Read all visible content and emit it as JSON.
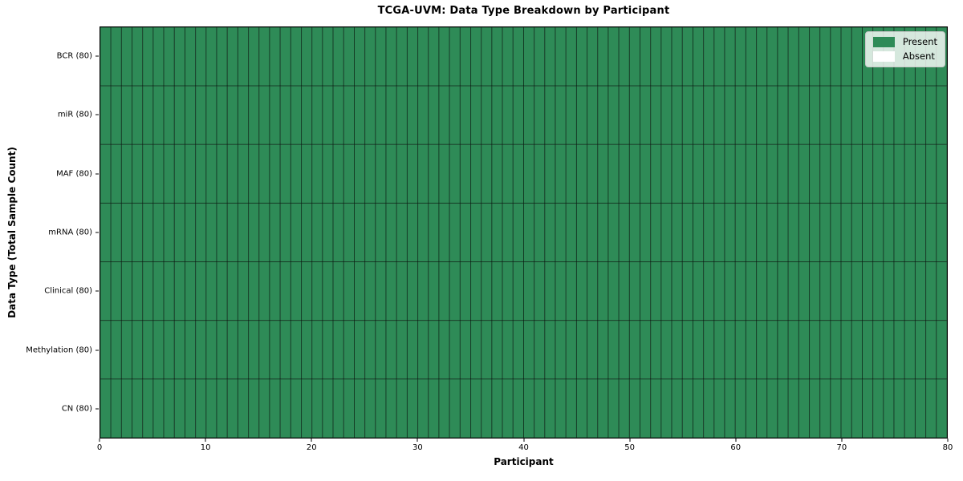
{
  "chart_data": {
    "type": "heatmap",
    "title": "TCGA-UVM: Data Type Breakdown by Participant",
    "xlabel": "Participant",
    "ylabel": "Data Type (Total Sample Count)",
    "xlim": [
      0,
      80
    ],
    "x_ticks": [
      0,
      10,
      20,
      30,
      40,
      50,
      60,
      70,
      80
    ],
    "participants": 80,
    "rows": [
      {
        "label": "BCR (80)",
        "total_samples": 80,
        "present_count": 80
      },
      {
        "label": "miR (80)",
        "total_samples": 80,
        "present_count": 80
      },
      {
        "label": "MAF (80)",
        "total_samples": 80,
        "present_count": 80
      },
      {
        "label": "mRNA (80)",
        "total_samples": 80,
        "present_count": 80
      },
      {
        "label": "Clinical (80)",
        "total_samples": 80,
        "present_count": 80
      },
      {
        "label": "Methylation (80)",
        "total_samples": 80,
        "present_count": 80
      },
      {
        "label": "CN (80)",
        "total_samples": 80,
        "present_count": 80
      }
    ],
    "legend": [
      {
        "label": "Present",
        "color": "#2e8b57"
      },
      {
        "label": "Absent",
        "color": "#ffffff"
      }
    ],
    "legend_position": "upper right",
    "colors": {
      "present": "#2e8b57",
      "absent": "#ffffff",
      "cell_border": "rgba(0,0,0,0.45)",
      "spine": "#000000"
    },
    "grid": false
  }
}
